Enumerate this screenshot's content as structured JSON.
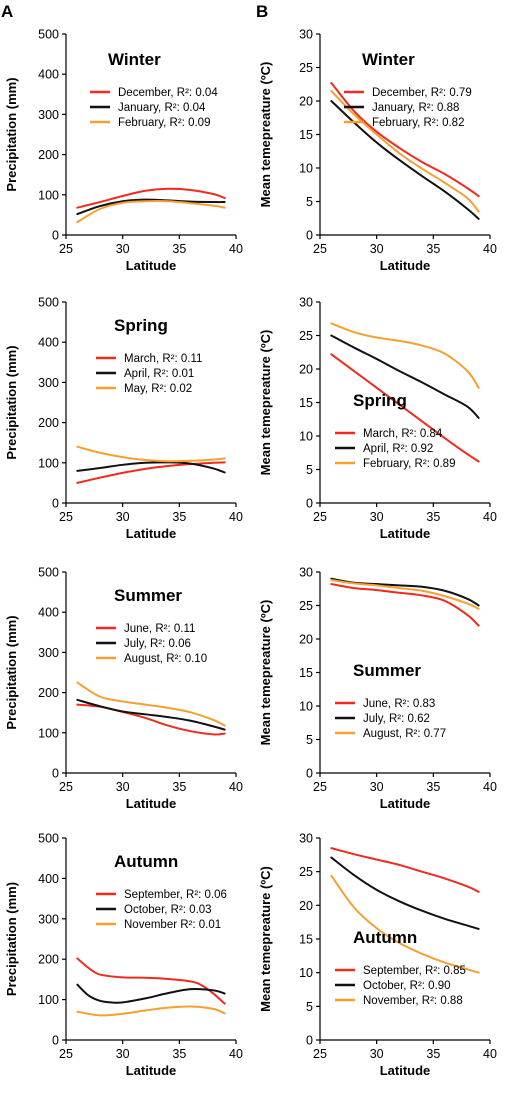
{
  "panel_labels": [
    "A",
    "B"
  ],
  "colors": {
    "red": "#ee2b1e",
    "black": "#111111",
    "orange": "#f5a030"
  },
  "chart_data": [
    {
      "type": "line",
      "title": "Winter",
      "xlabel": "Latitude",
      "ylabel": "Precipitation (mm)",
      "xlim": [
        25,
        40
      ],
      "ylim": [
        0,
        500
      ],
      "xticks": [
        25,
        30,
        35,
        40
      ],
      "yticks": [
        0,
        100,
        200,
        300,
        400,
        500
      ],
      "legend_position": "top",
      "series": [
        {
          "name": "December, R²: 0.04",
          "color": "red",
          "x": [
            26,
            28,
            30,
            32,
            34,
            36,
            38,
            39
          ],
          "y": [
            68,
            82,
            97,
            110,
            115,
            112,
            102,
            92
          ]
        },
        {
          "name": "January, R²: 0.04",
          "color": "black",
          "x": [
            26,
            28,
            30,
            32,
            34,
            36,
            38,
            39
          ],
          "y": [
            52,
            72,
            84,
            88,
            86,
            83,
            82,
            82
          ]
        },
        {
          "name": "February, R²: 0.09",
          "color": "orange",
          "x": [
            26,
            28,
            30,
            32,
            34,
            36,
            38,
            39
          ],
          "y": [
            32,
            65,
            80,
            84,
            84,
            79,
            73,
            68
          ]
        }
      ]
    },
    {
      "type": "line",
      "title": "Winter",
      "xlabel": "Latitude",
      "ylabel": "Mean temepreature (ºC)",
      "xlim": [
        25,
        40
      ],
      "ylim": [
        0,
        30
      ],
      "xticks": [
        25,
        30,
        35,
        40
      ],
      "yticks": [
        0,
        5,
        10,
        15,
        20,
        25,
        30
      ],
      "legend_position": "top",
      "series": [
        {
          "name": "December, R²: 0.79",
          "color": "red",
          "x": [
            26,
            28,
            30,
            32,
            34,
            36,
            38,
            39
          ],
          "y": [
            22.7,
            18.5,
            15.4,
            13.0,
            10.9,
            9.1,
            7.0,
            5.8
          ]
        },
        {
          "name": "January, R²: 0.88",
          "color": "black",
          "x": [
            26,
            28,
            30,
            32,
            34,
            36,
            38,
            39
          ],
          "y": [
            20.0,
            16.8,
            13.8,
            11.2,
            8.8,
            6.5,
            3.9,
            2.4
          ]
        },
        {
          "name": "February, R²: 0.82",
          "color": "orange",
          "x": [
            26,
            28,
            30,
            32,
            34,
            36,
            38,
            39
          ],
          "y": [
            21.5,
            18.0,
            15.0,
            12.2,
            9.9,
            7.8,
            5.5,
            3.5
          ]
        }
      ]
    },
    {
      "type": "line",
      "title": "Spring",
      "xlabel": "Latitude",
      "ylabel": "Precipitation (mm)",
      "xlim": [
        25,
        40
      ],
      "ylim": [
        0,
        500
      ],
      "xticks": [
        25,
        30,
        35,
        40
      ],
      "yticks": [
        0,
        100,
        200,
        300,
        400,
        500
      ],
      "legend_position": "top-right",
      "series": [
        {
          "name": "March, R²: 0.11",
          "color": "red",
          "x": [
            26,
            28,
            30,
            32,
            34,
            36,
            38,
            39
          ],
          "y": [
            50,
            63,
            75,
            85,
            92,
            97,
            100,
            101
          ]
        },
        {
          "name": "April, R²: 0.01",
          "color": "black",
          "x": [
            26,
            28,
            30,
            32,
            34,
            36,
            38,
            39
          ],
          "y": [
            80,
            87,
            95,
            100,
            101,
            98,
            86,
            76
          ]
        },
        {
          "name": "May, R²: 0.02",
          "color": "orange",
          "x": [
            26,
            28,
            30,
            32,
            34,
            36,
            38,
            39
          ],
          "y": [
            140,
            125,
            114,
            107,
            104,
            105,
            108,
            111
          ]
        }
      ]
    },
    {
      "type": "line",
      "title": "Spring",
      "xlabel": "Latitude",
      "ylabel": "Mean temepreature (ºC)",
      "xlim": [
        25,
        40
      ],
      "ylim": [
        0,
        30
      ],
      "xticks": [
        25,
        30,
        35,
        40
      ],
      "yticks": [
        0,
        5,
        10,
        15,
        20,
        25,
        30
      ],
      "legend_position": "bottom-left",
      "series": [
        {
          "name": "March, R²: 0.84",
          "color": "red",
          "x": [
            26,
            28,
            30,
            32,
            34,
            36,
            38,
            39
          ],
          "y": [
            22.2,
            19.7,
            17.2,
            14.7,
            12.2,
            9.7,
            7.3,
            6.2
          ]
        },
        {
          "name": "April, R²: 0.92",
          "color": "black",
          "x": [
            26,
            28,
            30,
            32,
            34,
            36,
            38,
            39
          ],
          "y": [
            25.0,
            23.2,
            21.5,
            19.7,
            18.0,
            16.2,
            14.4,
            12.7
          ]
        },
        {
          "name": "February, R²: 0.89",
          "color": "orange",
          "x": [
            26,
            28,
            30,
            32,
            34,
            36,
            38,
            39
          ],
          "y": [
            26.8,
            25.5,
            24.7,
            24.2,
            23.5,
            22.3,
            19.7,
            17.2
          ]
        }
      ]
    },
    {
      "type": "line",
      "title": "Summer",
      "xlabel": "Latitude",
      "ylabel": "Precipitation (mm)",
      "xlim": [
        25,
        40
      ],
      "ylim": [
        0,
        500
      ],
      "xticks": [
        25,
        30,
        35,
        40
      ],
      "yticks": [
        0,
        100,
        200,
        300,
        400,
        500
      ],
      "legend_position": "top-right",
      "series": [
        {
          "name": "June, R²: 0.11",
          "color": "red",
          "x": [
            26,
            28,
            30,
            32,
            34,
            36,
            38,
            39
          ],
          "y": [
            170,
            165,
            152,
            137,
            118,
            104,
            96,
            98
          ]
        },
        {
          "name": "July, R²: 0.06",
          "color": "black",
          "x": [
            26,
            28,
            30,
            32,
            34,
            36,
            38,
            39
          ],
          "y": [
            182,
            166,
            153,
            146,
            139,
            130,
            116,
            108
          ]
        },
        {
          "name": "August, R²: 0.10",
          "color": "orange",
          "x": [
            26,
            28,
            30,
            32,
            34,
            36,
            38,
            39
          ],
          "y": [
            225,
            190,
            178,
            170,
            162,
            151,
            132,
            118
          ]
        }
      ]
    },
    {
      "type": "line",
      "title": "Summer",
      "xlabel": "Latitude",
      "ylabel": "Mean temepreature (ºC)",
      "xlim": [
        25,
        40
      ],
      "ylim": [
        0,
        30
      ],
      "xticks": [
        25,
        30,
        35,
        40
      ],
      "yticks": [
        0,
        5,
        10,
        15,
        20,
        25,
        30
      ],
      "legend_position": "bottom-left",
      "series": [
        {
          "name": "June, R²: 0.83",
          "color": "red",
          "x": [
            26,
            28,
            30,
            32,
            34,
            36,
            38,
            39
          ],
          "y": [
            28.2,
            27.6,
            27.3,
            26.9,
            26.5,
            25.7,
            23.6,
            22.0
          ]
        },
        {
          "name": "July, R²: 0.62",
          "color": "black",
          "x": [
            26,
            28,
            30,
            32,
            34,
            36,
            38,
            39
          ],
          "y": [
            29.0,
            28.4,
            28.2,
            28.0,
            27.8,
            27.2,
            26.0,
            25.0
          ]
        },
        {
          "name": "August, R²: 0.77",
          "color": "orange",
          "x": [
            26,
            28,
            30,
            32,
            34,
            36,
            38,
            39
          ],
          "y": [
            28.8,
            28.3,
            28.0,
            27.6,
            27.2,
            26.4,
            25.3,
            24.5
          ]
        }
      ]
    },
    {
      "type": "line",
      "title": "Autumn",
      "xlabel": "Latitude",
      "ylabel": "Precipitation (mm)",
      "xlim": [
        25,
        40
      ],
      "ylim": [
        0,
        500
      ],
      "xticks": [
        25,
        30,
        35,
        40
      ],
      "yticks": [
        0,
        100,
        200,
        300,
        400,
        500
      ],
      "legend_position": "top-right",
      "series": [
        {
          "name": "September, R²: 0.06",
          "color": "red",
          "x": [
            26,
            27,
            28,
            30,
            32,
            34,
            36,
            37,
            38,
            39
          ],
          "y": [
            202,
            178,
            162,
            155,
            154,
            151,
            145,
            135,
            115,
            90
          ]
        },
        {
          "name": "October, R²: 0.03",
          "color": "black",
          "x": [
            26,
            27,
            28,
            29,
            30,
            32,
            34,
            36,
            38,
            39
          ],
          "y": [
            137,
            110,
            97,
            93,
            93,
            103,
            116,
            126,
            123,
            115
          ]
        },
        {
          "name": "November R²: 0.01",
          "color": "orange",
          "x": [
            26,
            28,
            30,
            32,
            34,
            36,
            38,
            39
          ],
          "y": [
            70,
            61,
            65,
            73,
            80,
            83,
            77,
            66
          ]
        }
      ]
    },
    {
      "type": "line",
      "title": "Autumn",
      "xlabel": "Latitude",
      "ylabel": "Mean temepreature (ºC)",
      "xlim": [
        25,
        40
      ],
      "ylim": [
        0,
        30
      ],
      "xticks": [
        25,
        30,
        35,
        40
      ],
      "yticks": [
        0,
        5,
        10,
        15,
        20,
        25,
        30
      ],
      "legend_position": "bottom-left",
      "series": [
        {
          "name": "September, R²: 0.85",
          "color": "red",
          "x": [
            26,
            28,
            30,
            32,
            34,
            36,
            38,
            39
          ],
          "y": [
            28.5,
            27.6,
            26.8,
            26.0,
            25.0,
            24.0,
            22.8,
            22.0
          ]
        },
        {
          "name": "October, R²: 0.90",
          "color": "black",
          "x": [
            26,
            28,
            30,
            32,
            34,
            36,
            38,
            39
          ],
          "y": [
            27.1,
            24.5,
            22.3,
            20.6,
            19.2,
            18.0,
            17.0,
            16.5
          ]
        },
        {
          "name": "November, R²: 0.88",
          "color": "orange",
          "x": [
            26,
            28,
            30,
            32,
            34,
            36,
            38,
            39
          ],
          "y": [
            24.4,
            19.7,
            16.6,
            14.4,
            12.8,
            11.5,
            10.5,
            10.0
          ]
        }
      ]
    }
  ]
}
